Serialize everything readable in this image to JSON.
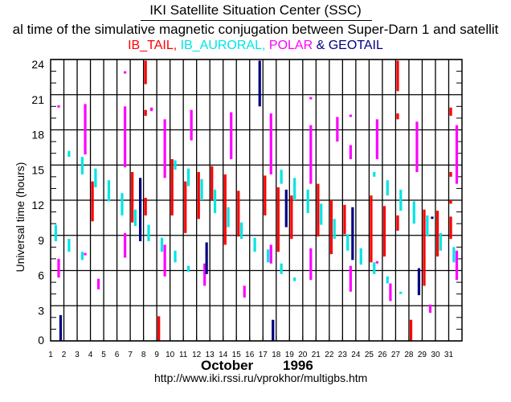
{
  "header": {
    "title": "IKI Satellite Situation Center (SSC)",
    "subtitle": "al time of the simulative magnetic conjugation between Super-Darn 1 and satellit",
    "legend": [
      {
        "label": "IB_TAIL,",
        "color": "#ff0000"
      },
      {
        "label": "IB_AURORAL,",
        "color": "#00e5e5"
      },
      {
        "label": "POLAR",
        "color": "#ff00ff"
      },
      {
        "label": "&",
        "color": "#000080"
      },
      {
        "label": "GEOTAIL",
        "color": "#000080"
      }
    ]
  },
  "footer": {
    "month": "October",
    "year": "1996",
    "url": "http://www.iki.rssi.ru/vprokhor/multigbs.htm"
  },
  "chart_data": {
    "type": "bar",
    "orientation": "floating vertical ranges",
    "ylabel": "Universal time (hours)",
    "xlabel": "October 1996",
    "xlim": [
      1,
      31
    ],
    "ylim": [
      0,
      24
    ],
    "x_ticks": [
      1,
      2,
      3,
      4,
      5,
      6,
      7,
      8,
      9,
      10,
      11,
      12,
      13,
      14,
      15,
      16,
      17,
      18,
      19,
      20,
      21,
      22,
      23,
      24,
      25,
      26,
      27,
      28,
      29,
      30,
      31
    ],
    "y_ticks": [
      0,
      3,
      6,
      9,
      12,
      15,
      18,
      21,
      24
    ],
    "grid": true,
    "series": [
      {
        "name": "IB_TAIL",
        "color": "#ff0000",
        "ranges": [
          [
            4,
            10.2,
            13.6
          ],
          [
            7,
            10.1,
            14.4
          ],
          [
            8,
            21.9,
            23.9
          ],
          [
            8,
            19.2,
            19.7
          ],
          [
            8,
            10.7,
            12.2
          ],
          [
            9,
            0,
            2.1
          ],
          [
            10,
            10.7,
            15.5
          ],
          [
            11,
            9.2,
            13.6
          ],
          [
            12,
            10.4,
            14.4
          ],
          [
            13,
            12.0,
            14.9
          ],
          [
            14,
            8.2,
            14.2
          ],
          [
            15,
            8.9,
            12.8
          ],
          [
            17,
            10.7,
            14.1
          ],
          [
            18,
            7.6,
            13.1
          ],
          [
            19,
            8.7,
            12.4
          ],
          [
            21,
            8.9,
            13.4
          ],
          [
            22,
            7.4,
            12.0
          ],
          [
            23,
            9.1,
            11.6
          ],
          [
            25,
            6.7,
            12.4
          ],
          [
            26,
            7.2,
            11.5
          ],
          [
            27,
            21.3,
            23.9
          ],
          [
            27,
            18.9,
            19.4
          ],
          [
            27,
            9.4,
            10.7
          ],
          [
            28,
            0,
            1.8
          ],
          [
            29,
            4.7,
            11.2
          ],
          [
            30,
            7.2,
            11.1
          ],
          [
            31,
            19.2,
            19.9
          ],
          [
            31,
            14.0,
            14.4
          ],
          [
            31,
            11.7,
            12.0
          ],
          [
            31,
            8.7,
            10.6
          ]
        ]
      },
      {
        "name": "IB_AURORAL",
        "color": "#00e5e5",
        "ranges": [
          [
            1,
            8.5,
            9.9
          ],
          [
            2,
            15.7,
            16.2
          ],
          [
            2,
            7.6,
            8.7
          ],
          [
            3,
            14.2,
            15.7
          ],
          [
            3,
            6.9,
            7.6
          ],
          [
            4,
            13.1,
            14.7
          ],
          [
            5,
            11.9,
            13.7
          ],
          [
            6,
            10.7,
            12.6
          ],
          [
            7,
            9.8,
            11.2
          ],
          [
            8,
            8.5,
            9.9
          ],
          [
            9,
            7.6,
            8.8
          ],
          [
            10,
            14.6,
            15.4
          ],
          [
            10,
            6.7,
            7.7
          ],
          [
            11,
            13.2,
            14.7
          ],
          [
            11,
            5.9,
            6.4
          ],
          [
            12,
            12.0,
            13.8
          ],
          [
            13,
            10.9,
            12.9
          ],
          [
            14,
            9.7,
            11.4
          ],
          [
            15,
            8.7,
            10.1
          ],
          [
            16,
            7.6,
            8.8
          ],
          [
            17,
            6.7,
            7.8
          ],
          [
            18,
            13.4,
            14.6
          ],
          [
            18,
            5.7,
            6.6
          ],
          [
            19,
            12.0,
            13.9
          ],
          [
            19,
            5.1,
            5.4
          ],
          [
            20,
            10.9,
            12.9
          ],
          [
            21,
            9.9,
            11.7
          ],
          [
            22,
            8.7,
            10.4
          ],
          [
            23,
            7.7,
            9.1
          ],
          [
            24,
            6.5,
            7.9
          ],
          [
            25,
            14.0,
            14.4
          ],
          [
            25,
            5.7,
            6.7
          ],
          [
            26,
            12.4,
            13.7
          ],
          [
            26,
            4.9,
            5.5
          ],
          [
            27,
            11.1,
            12.9
          ],
          [
            27,
            4.0,
            4.2
          ],
          [
            28,
            10.0,
            11.9
          ],
          [
            29,
            8.9,
            10.7
          ],
          [
            30,
            7.7,
            9.2
          ],
          [
            31,
            6.7,
            8.0
          ]
        ]
      },
      {
        "name": "POLAR",
        "color": "#ff00ff",
        "ranges": [
          [
            1,
            19.9,
            20.1
          ],
          [
            1,
            5.4,
            7.0
          ],
          [
            3,
            15.9,
            20.2
          ],
          [
            3,
            7.3,
            7.5
          ],
          [
            4,
            4.4,
            5.3
          ],
          [
            6,
            22.8,
            23.0
          ],
          [
            6,
            14.8,
            20.0
          ],
          [
            6,
            7.1,
            9.2
          ],
          [
            8,
            19.6,
            19.9
          ],
          [
            9,
            13.9,
            18.9
          ],
          [
            9,
            5.5,
            8.2
          ],
          [
            11,
            17.1,
            19.7
          ],
          [
            12,
            4.7,
            6.6
          ],
          [
            14,
            15.5,
            19.5
          ],
          [
            15,
            3.7,
            4.7
          ],
          [
            17,
            14.2,
            19.4
          ],
          [
            17,
            6.6,
            8.2
          ],
          [
            20,
            20.6,
            20.8
          ],
          [
            20,
            13.4,
            18.4
          ],
          [
            20,
            5.2,
            7.9
          ],
          [
            22,
            17.0,
            19.1
          ],
          [
            23,
            19.1,
            19.3
          ],
          [
            23,
            15.5,
            16.7
          ],
          [
            23,
            4.2,
            6.4
          ],
          [
            25,
            15.5,
            18.9
          ],
          [
            25,
            6.6,
            6.8
          ],
          [
            26,
            3.4,
            4.9
          ],
          [
            28,
            14.4,
            18.7
          ],
          [
            29,
            2.4,
            3.1
          ],
          [
            31,
            13.4,
            18.4
          ],
          [
            31,
            5.2,
            7.7
          ]
        ]
      },
      {
        "name": "GEOTAIL",
        "color": "#000080",
        "ranges": [
          [
            1,
            0,
            2.2
          ],
          [
            7,
            8.5,
            13.9
          ],
          [
            12,
            5.7,
            8.4
          ],
          [
            16,
            20.0,
            23.9
          ],
          [
            17,
            0,
            1.8
          ],
          [
            18,
            9.7,
            12.9
          ],
          [
            23,
            6.9,
            11.4
          ],
          [
            28,
            3.9,
            6.2
          ],
          [
            29,
            10.4,
            10.6
          ]
        ]
      }
    ]
  }
}
